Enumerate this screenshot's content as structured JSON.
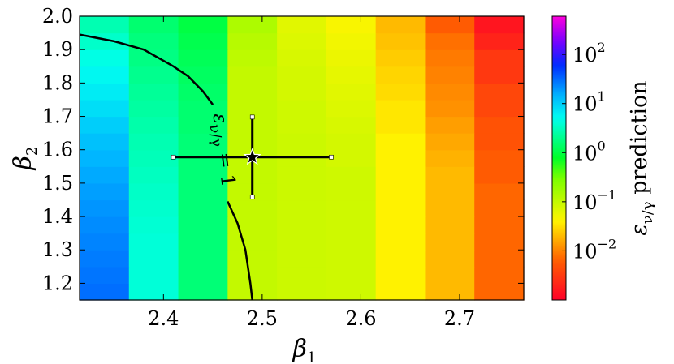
{
  "chart_data": {
    "type": "heatmap",
    "title": "",
    "xlabel": {
      "base": "β",
      "sub": "1"
    },
    "ylabel": {
      "base": "β",
      "sub": "2"
    },
    "xlim": [
      2.315,
      2.765
    ],
    "ylim": [
      1.15,
      2.0
    ],
    "xticks": [
      2.4,
      2.5,
      2.6,
      2.7
    ],
    "xtick_labels": [
      "2.4",
      "2.5",
      "2.6",
      "2.7"
    ],
    "yticks": [
      1.2,
      1.3,
      1.4,
      1.5,
      1.6,
      1.7,
      1.8,
      1.9,
      2.0
    ],
    "ytick_labels": [
      "1.2",
      "1.3",
      "1.4",
      "1.5",
      "1.6",
      "1.7",
      "1.8",
      "1.9",
      "2.0"
    ],
    "x_edges": [
      2.315,
      2.365,
      2.415,
      2.465,
      2.515,
      2.565,
      2.615,
      2.665,
      2.715,
      2.765
    ],
    "y_edges": [
      1.15,
      1.2,
      1.25,
      1.3,
      1.35,
      1.4,
      1.45,
      1.5,
      1.55,
      1.6,
      1.65,
      1.7,
      1.75,
      1.8,
      1.85,
      1.9,
      1.95,
      2.0
    ],
    "z_rows_bottom_to_top": [
      [
        30,
        4,
        1.6,
        0.1,
        0.09,
        0.085,
        0.04,
        0.02,
        0.007
      ],
      [
        28,
        4,
        1.6,
        0.1,
        0.09,
        0.085,
        0.04,
        0.02,
        0.007
      ],
      [
        26,
        4,
        1.6,
        0.1,
        0.09,
        0.085,
        0.04,
        0.02,
        0.007
      ],
      [
        24,
        4,
        1.6,
        0.1,
        0.09,
        0.085,
        0.04,
        0.02,
        0.007
      ],
      [
        22,
        3.8,
        1.6,
        0.1,
        0.09,
        0.085,
        0.04,
        0.02,
        0.007
      ],
      [
        20,
        3.6,
        1.6,
        0.1,
        0.09,
        0.085,
        0.04,
        0.02,
        0.007
      ],
      [
        18,
        3.4,
        1.6,
        0.1,
        0.09,
        0.085,
        0.04,
        0.02,
        0.007
      ],
      [
        16,
        3.2,
        1.6,
        0.1,
        0.09,
        0.085,
        0.04,
        0.02,
        0.006
      ],
      [
        14,
        3.0,
        1.6,
        0.1,
        0.09,
        0.08,
        0.04,
        0.018,
        0.006
      ],
      [
        12,
        2.8,
        1.6,
        0.1,
        0.09,
        0.08,
        0.04,
        0.016,
        0.005
      ],
      [
        10,
        2.6,
        1.5,
        0.1,
        0.085,
        0.075,
        0.035,
        0.014,
        0.005
      ],
      [
        8,
        2.4,
        1.5,
        0.1,
        0.085,
        0.07,
        0.035,
        0.012,
        0.004
      ],
      [
        6.5,
        2.2,
        1.4,
        0.1,
        0.08,
        0.065,
        0.03,
        0.011,
        0.004
      ],
      [
        5.5,
        2.0,
        1.3,
        0.1,
        0.08,
        0.06,
        0.028,
        0.01,
        0.003
      ],
      [
        4.5,
        1.8,
        1.2,
        0.11,
        0.075,
        0.055,
        0.025,
        0.009,
        0.003
      ],
      [
        3.5,
        1.7,
        1.1,
        0.12,
        0.07,
        0.05,
        0.022,
        0.008,
        0.002
      ],
      [
        2.8,
        1.5,
        1.0,
        0.14,
        0.065,
        0.045,
        0.02,
        0.006,
        0.0015
      ]
    ],
    "colorbar": {
      "label": "prediction",
      "label_symbol": "ε",
      "label_subscript": "ν/γ",
      "scale": "log",
      "range": [
        0.001,
        600
      ],
      "colormap": "gist_rainbow",
      "ticks": [
        0.01,
        0.1,
        1,
        10,
        100
      ],
      "tick_labels": [
        {
          "base": "10",
          "exp": "−2"
        },
        {
          "base": "10",
          "exp": "−1"
        },
        {
          "base": "10",
          "exp": "0"
        },
        {
          "base": "10",
          "exp": "1"
        },
        {
          "base": "10",
          "exp": "2"
        }
      ]
    },
    "contour": {
      "level": 1,
      "label": "ε",
      "label_sub": "ν/γ",
      "label_suffix": " = 1",
      "upper_segment": [
        [
          2.315,
          1.945
        ],
        [
          2.35,
          1.925
        ],
        [
          2.38,
          1.9
        ],
        [
          2.41,
          1.85
        ],
        [
          2.425,
          1.82
        ],
        [
          2.44,
          1.775
        ],
        [
          2.45,
          1.735
        ]
      ],
      "lower_segment": [
        [
          2.465,
          1.445
        ],
        [
          2.475,
          1.38
        ],
        [
          2.483,
          1.3
        ],
        [
          2.488,
          1.2
        ],
        [
          2.49,
          1.15
        ]
      ]
    },
    "best_fit": {
      "x": 2.49,
      "y": 1.578,
      "x_range": [
        2.41,
        2.57
      ],
      "y_range": [
        1.458,
        1.698
      ]
    }
  }
}
